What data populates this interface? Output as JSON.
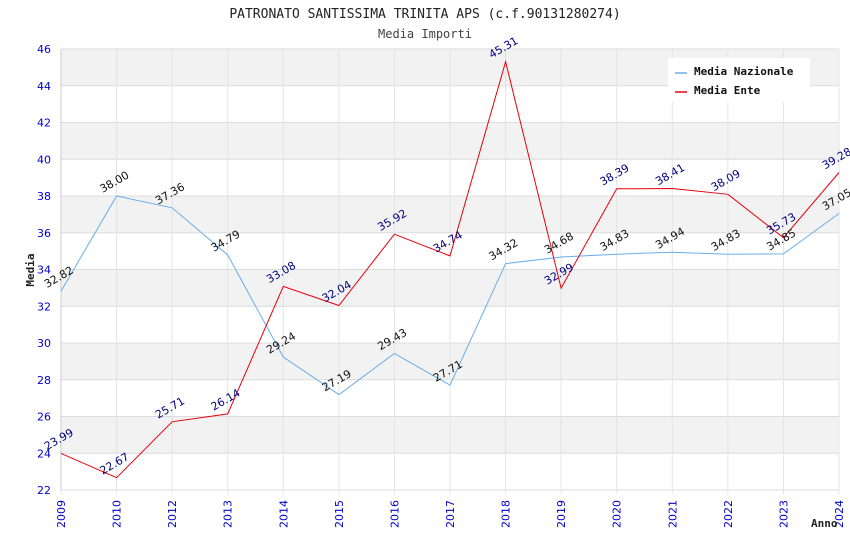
{
  "chart_data": {
    "type": "line",
    "title": "PATRONATO SANTISSIMA TRINITA APS (c.f.90131280274)",
    "subtitle": "Media Importi",
    "xlabel": "Anno",
    "ylabel": "Media",
    "ylim": [
      22,
      46
    ],
    "yticks": [
      "22",
      "24",
      "26",
      "28",
      "30",
      "32",
      "34",
      "36",
      "38",
      "40",
      "42",
      "44",
      "46"
    ],
    "categories": [
      "2009",
      "2010",
      "2012",
      "2013",
      "2014",
      "2015",
      "2016",
      "2017",
      "2018",
      "2019",
      "2020",
      "2021",
      "2022",
      "2023",
      "2024"
    ],
    "legend_position": "top-right",
    "series": [
      {
        "name": "Media Nazionale",
        "color": "#6aaee8",
        "values": [
          32.82,
          38.0,
          37.36,
          34.79,
          29.24,
          27.19,
          29.43,
          27.71,
          34.32,
          34.68,
          34.83,
          34.94,
          34.83,
          34.85,
          37.05
        ],
        "labels": [
          "32.82",
          "38.00",
          "37.36",
          "34.79",
          "29.24",
          "27.19",
          "29.43",
          "27.71",
          "34.32",
          "34.68",
          "34.83",
          "34.94",
          "34.83",
          "34.85",
          "37.05"
        ]
      },
      {
        "name": "Media Ente",
        "color": "#e8000b",
        "values": [
          23.99,
          22.67,
          25.71,
          26.14,
          33.08,
          32.04,
          35.92,
          34.74,
          45.31,
          32.99,
          38.39,
          38.41,
          38.09,
          35.73,
          39.28
        ],
        "labels": [
          "23.99",
          "22.67",
          "25.71",
          "26.14",
          "33.08",
          "32.04",
          "35.92",
          "34.74",
          "45.31",
          "32.99",
          "38.39",
          "38.41",
          "38.09",
          "35.73",
          "39.28"
        ]
      }
    ]
  }
}
